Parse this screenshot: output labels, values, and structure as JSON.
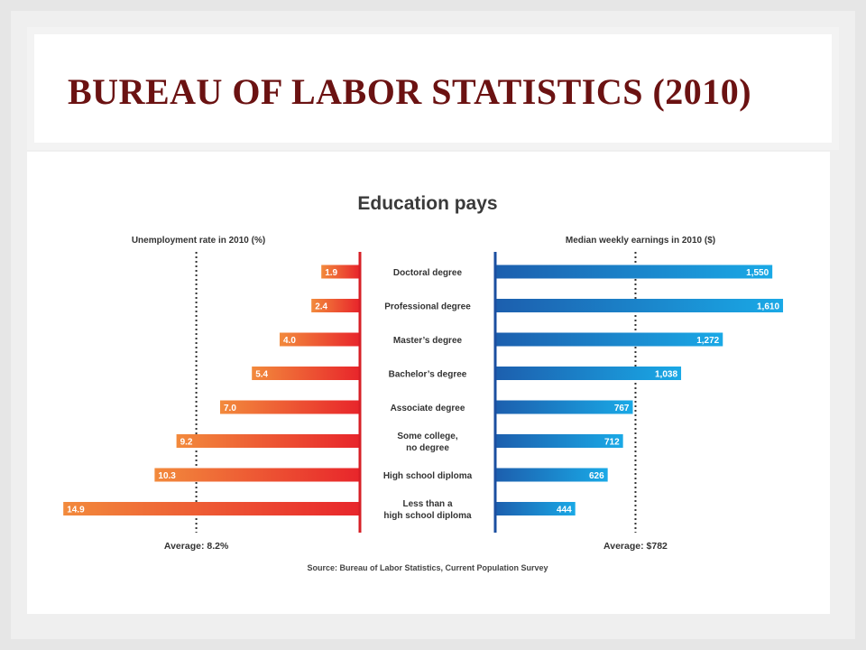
{
  "slide": {
    "title": "BUREAU OF LABOR STATISTICS (2010)"
  },
  "colors": {
    "title": "#6b1212",
    "left_bar_light": "#f28a3c",
    "left_bar_dark": "#e8262b",
    "right_bar_dark": "#1c5fae",
    "right_bar_light": "#1aa9e6",
    "divider_left": "#d61f26",
    "divider_right": "#1b4fa0"
  },
  "chart_data": {
    "type": "bar",
    "title": "Education pays",
    "categories": [
      "Doctoral degree",
      "Professional degree",
      "Master’s degree",
      "Bachelor’s degree",
      "Associate degree",
      "Some college,\nno degree",
      "High school diploma",
      "Less than a\nhigh school diploma"
    ],
    "series": [
      {
        "name": "Unemployment rate in 2010 (%)",
        "values": [
          1.9,
          2.4,
          4.0,
          5.4,
          7.0,
          9.2,
          10.3,
          14.9
        ],
        "labels": [
          "1.9",
          "2.4",
          "4.0",
          "5.4",
          "7.0",
          "9.2",
          "10.3",
          "14.9"
        ],
        "average": 8.2,
        "average_label": "Average: 8.2%",
        "axis_max": 15
      },
      {
        "name": "Median weekly earnings in 2010 ($)",
        "values": [
          1550,
          1610,
          1272,
          1038,
          767,
          712,
          626,
          444
        ],
        "labels": [
          "1,550",
          "1,610",
          "1,272",
          "1,038",
          "767",
          "712",
          "626",
          "444"
        ],
        "average": 782,
        "average_label": "Average: $782",
        "axis_max": 1620
      }
    ],
    "source": "Source: Bureau of Labor Statistics, Current Population Survey",
    "legend": "none",
    "grid": false
  }
}
